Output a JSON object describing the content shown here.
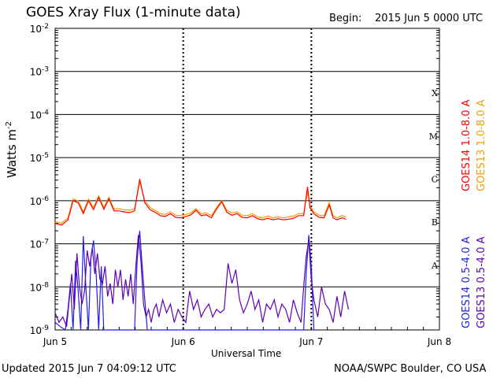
{
  "header": {
    "title": "GOES Xray Flux (1-minute data)",
    "begin_label": "Begin:",
    "begin_value": "2015 Jun 5 0000 UTC"
  },
  "footer": {
    "updated": "Updated 2015 Jun  7 04:09:12 UTC",
    "credit": "NOAA/SWPC Boulder, CO USA"
  },
  "chart_data": {
    "type": "line",
    "title": "GOES Xray Flux (1-minute data)",
    "xlabel": "Universal Time",
    "ylabel": "Watts m",
    "ylabel_superscript": "-2",
    "y_scale": "log",
    "xlim": [
      0,
      3
    ],
    "ylim_exp": [
      -9,
      -2
    ],
    "x_ticks": [
      {
        "x": 0,
        "label": "Jun 5"
      },
      {
        "x": 1,
        "label": "Jun 6"
      },
      {
        "x": 2,
        "label": "Jun 7"
      },
      {
        "x": 3,
        "label": "Jun 8"
      }
    ],
    "y_ticks": [
      {
        "exp": -9,
        "label": "10",
        "sup": "-9"
      },
      {
        "exp": -8,
        "label": "10",
        "sup": "-8"
      },
      {
        "exp": -7,
        "label": "10",
        "sup": "-7"
      },
      {
        "exp": -6,
        "label": "10",
        "sup": "-6"
      },
      {
        "exp": -5,
        "label": "10",
        "sup": "-5"
      },
      {
        "exp": -4,
        "label": "10",
        "sup": "-4"
      },
      {
        "exp": -3,
        "label": "10",
        "sup": "-3"
      },
      {
        "exp": -2,
        "label": "10",
        "sup": "-2"
      }
    ],
    "flare_classes": [
      {
        "label": "A",
        "exp": -7.5
      },
      {
        "label": "B",
        "exp": -6.5
      },
      {
        "label": "C",
        "exp": -5.5
      },
      {
        "label": "M",
        "exp": -4.5
      },
      {
        "label": "X",
        "exp": -3.5
      }
    ],
    "grid": true,
    "legend_placement": "right-vertical",
    "series": [
      {
        "name": "GOES13 1.0-8.0 A",
        "color": "#f0a000",
        "x": [
          0.0,
          0.05,
          0.1,
          0.14,
          0.18,
          0.22,
          0.26,
          0.3,
          0.34,
          0.38,
          0.42,
          0.46,
          0.5,
          0.54,
          0.58,
          0.62,
          0.66,
          0.7,
          0.74,
          0.78,
          0.82,
          0.86,
          0.9,
          0.94,
          0.98,
          1.02,
          1.06,
          1.1,
          1.14,
          1.18,
          1.22,
          1.26,
          1.3,
          1.34,
          1.38,
          1.42,
          1.46,
          1.5,
          1.54,
          1.58,
          1.62,
          1.66,
          1.7,
          1.74,
          1.78,
          1.82,
          1.86,
          1.9,
          1.94,
          1.97,
          1.99,
          2.02,
          2.06,
          2.1,
          2.14,
          2.17,
          2.2,
          2.24,
          2.27
        ],
        "y": [
          3.3e-07,
          3e-07,
          4e-07,
          1.1e-06,
          1e-06,
          5.5e-07,
          1.1e-06,
          7e-07,
          1.3e-06,
          7e-07,
          1.2e-06,
          6.5e-07,
          6.5e-07,
          6.2e-07,
          6e-07,
          6.5e-07,
          2.7e-06,
          1e-06,
          7e-07,
          6e-07,
          5e-07,
          4.8e-07,
          5.5e-07,
          4.6e-07,
          4.5e-07,
          4.8e-07,
          5.2e-07,
          6.5e-07,
          5e-07,
          5.2e-07,
          4.5e-07,
          7e-07,
          1e-06,
          6e-07,
          5.2e-07,
          5.5e-07,
          4.6e-07,
          4.5e-07,
          5e-07,
          4.2e-07,
          4e-07,
          4.4e-07,
          4e-07,
          4.2e-07,
          4e-07,
          4.2e-07,
          4.4e-07,
          5e-07,
          5e-07,
          1.6e-06,
          7.5e-07,
          5.5e-07,
          4.6e-07,
          4.5e-07,
          9e-07,
          4.5e-07,
          4e-07,
          4.5e-07,
          4.2e-07
        ]
      },
      {
        "name": "GOES14 1.0-8.0 A",
        "color": "#ff0000",
        "x": [
          0.0,
          0.05,
          0.1,
          0.14,
          0.18,
          0.22,
          0.26,
          0.3,
          0.34,
          0.38,
          0.42,
          0.46,
          0.5,
          0.54,
          0.58,
          0.62,
          0.66,
          0.7,
          0.74,
          0.78,
          0.82,
          0.86,
          0.9,
          0.94,
          0.98,
          1.02,
          1.06,
          1.1,
          1.14,
          1.18,
          1.22,
          1.26,
          1.3,
          1.34,
          1.38,
          1.42,
          1.46,
          1.5,
          1.54,
          1.58,
          1.62,
          1.66,
          1.7,
          1.74,
          1.78,
          1.82,
          1.86,
          1.9,
          1.94,
          1.97,
          1.99,
          2.02,
          2.06,
          2.1,
          2.14,
          2.17,
          2.2,
          2.24,
          2.27
        ],
        "y": [
          3e-07,
          2.7e-07,
          3.6e-07,
          1e-06,
          9e-07,
          5e-07,
          1e-06,
          6.2e-07,
          1.2e-06,
          6.3e-07,
          1.1e-06,
          5.8e-07,
          5.8e-07,
          5.5e-07,
          5.3e-07,
          5.8e-07,
          3.2e-06,
          9e-07,
          6.2e-07,
          5.4e-07,
          4.5e-07,
          4.3e-07,
          5e-07,
          4.1e-07,
          4e-07,
          4.3e-07,
          4.7e-07,
          6e-07,
          4.5e-07,
          4.7e-07,
          4e-07,
          6.4e-07,
          9.5e-07,
          5.4e-07,
          4.6e-07,
          5e-07,
          4.1e-07,
          4e-07,
          4.5e-07,
          3.8e-07,
          3.6e-07,
          3.9e-07,
          3.6e-07,
          3.8e-07,
          3.6e-07,
          3.7e-07,
          3.9e-07,
          4.5e-07,
          4.5e-07,
          2.1e-06,
          6.8e-07,
          5e-07,
          4.1e-07,
          4e-07,
          8e-07,
          4e-07,
          3.6e-07,
          4e-07,
          3.7e-07
        ]
      },
      {
        "name": "GOES14 0.5-4.0 A",
        "color": "#2020e0",
        "x": [
          0.0,
          0.04,
          0.08,
          0.1,
          0.12,
          0.14,
          0.16,
          0.18,
          0.2,
          0.22,
          0.24,
          0.26,
          0.28,
          0.3,
          0.32,
          0.34,
          0.36,
          0.38,
          0.4,
          0.42,
          0.44,
          0.46,
          0.48,
          0.5,
          0.52,
          0.54,
          0.56,
          0.58,
          0.6,
          0.62,
          0.64,
          0.66,
          0.68,
          0.7,
          0.72,
          0.74,
          0.76,
          0.78,
          0.8,
          1.94,
          1.96,
          1.98,
          2.0,
          2.02,
          2.04
        ],
        "y": [
          1.5e-09,
          1.2e-09,
          1e-09,
          3e-09,
          1.2e-08,
          1e-09,
          4e-08,
          8e-09,
          1e-09,
          1.5e-07,
          1e-08,
          1e-09,
          5e-08,
          1.2e-07,
          2e-08,
          1e-09,
          3e-08,
          1e-09,
          1e-09,
          1e-09,
          1e-09,
          1e-09,
          1e-09,
          1e-09,
          1e-09,
          1e-09,
          1e-09,
          1e-09,
          1e-09,
          1e-09,
          4e-08,
          2e-07,
          3e-08,
          5e-09,
          1e-09,
          1e-09,
          1e-09,
          1e-09,
          1e-09,
          1e-09,
          2e-08,
          1.6e-07,
          3e-08,
          1e-09,
          1e-09
        ]
      },
      {
        "name": "GOES13 0.5-4.0 A",
        "color": "#6000b0",
        "x": [
          0.0,
          0.03,
          0.06,
          0.09,
          0.11,
          0.13,
          0.15,
          0.17,
          0.19,
          0.21,
          0.23,
          0.25,
          0.27,
          0.29,
          0.31,
          0.33,
          0.35,
          0.37,
          0.39,
          0.41,
          0.43,
          0.45,
          0.47,
          0.49,
          0.51,
          0.53,
          0.55,
          0.57,
          0.59,
          0.61,
          0.63,
          0.65,
          0.67,
          0.69,
          0.71,
          0.73,
          0.75,
          0.77,
          0.79,
          0.81,
          0.84,
          0.87,
          0.9,
          0.93,
          0.96,
          0.99,
          1.02,
          1.05,
          1.08,
          1.11,
          1.14,
          1.17,
          1.2,
          1.23,
          1.26,
          1.29,
          1.32,
          1.35,
          1.38,
          1.41,
          1.44,
          1.47,
          1.5,
          1.53,
          1.56,
          1.59,
          1.62,
          1.65,
          1.68,
          1.71,
          1.74,
          1.77,
          1.8,
          1.83,
          1.86,
          1.89,
          1.92,
          1.94,
          1.96,
          1.98,
          2.0,
          2.02,
          2.05,
          2.08,
          2.11,
          2.14,
          2.17,
          2.2,
          2.23,
          2.26,
          2.29
        ],
        "y": [
          2.5e-09,
          1.5e-09,
          2e-09,
          1.2e-09,
          5e-09,
          2e-08,
          3e-09,
          6e-08,
          1e-08,
          4e-09,
          8e-09,
          7e-08,
          3e-08,
          8e-08,
          2e-08,
          6e-08,
          1.5e-08,
          1.2e-08,
          3e-08,
          6e-09,
          1.2e-08,
          4e-09,
          2.5e-08,
          1e-08,
          2.5e-08,
          5e-09,
          1.5e-08,
          6e-09,
          2e-08,
          4e-09,
          3e-08,
          1.6e-07,
          4e-08,
          4e-09,
          2e-09,
          3e-09,
          1.5e-09,
          3e-09,
          4e-09,
          2e-09,
          5e-09,
          2.5e-09,
          4e-09,
          1.5e-09,
          3e-09,
          2e-09,
          1.5e-09,
          8e-09,
          3e-09,
          5e-09,
          2e-09,
          3e-09,
          4e-09,
          2e-09,
          3e-09,
          2.5e-09,
          3e-09,
          3.5e-08,
          1.2e-08,
          2.5e-08,
          5e-09,
          2.5e-09,
          4e-09,
          8e-09,
          3e-09,
          5e-09,
          1.5e-09,
          4e-09,
          3e-09,
          5e-09,
          2e-09,
          4e-09,
          3e-09,
          1.5e-09,
          5e-09,
          2.5e-09,
          1.5e-09,
          1e-08,
          5e-08,
          1.2e-07,
          1.5e-08,
          5e-09,
          2e-09,
          1e-08,
          4e-09,
          3e-09,
          1.5e-09,
          6e-09,
          2e-09,
          8e-09,
          3e-09
        ]
      }
    ]
  }
}
